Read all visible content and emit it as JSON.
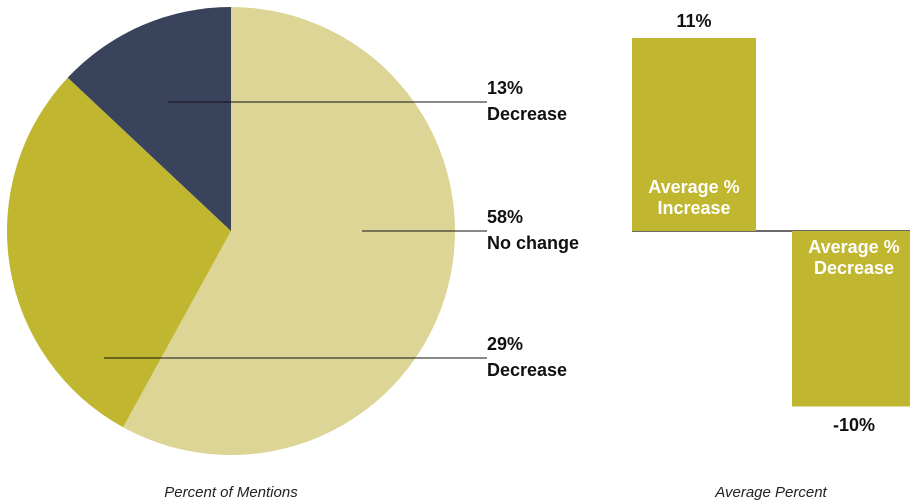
{
  "chart_data": [
    {
      "type": "pie",
      "caption": "Percent of Mentions",
      "categories": [
        "No change",
        "Decrease",
        "Decrease"
      ],
      "values": [
        58,
        29,
        13
      ],
      "value_labels": [
        "58%",
        "29%",
        "13%"
      ],
      "colors": [
        "#ddd595",
        "#c0b630",
        "#3a435c"
      ]
    },
    {
      "type": "bar",
      "caption": "Average Percent",
      "categories": [
        "Average % Increase",
        "Average % Decrease"
      ],
      "values": [
        11,
        -10
      ],
      "value_labels": [
        "11%",
        "-10%"
      ],
      "color": "#c0b630"
    }
  ]
}
